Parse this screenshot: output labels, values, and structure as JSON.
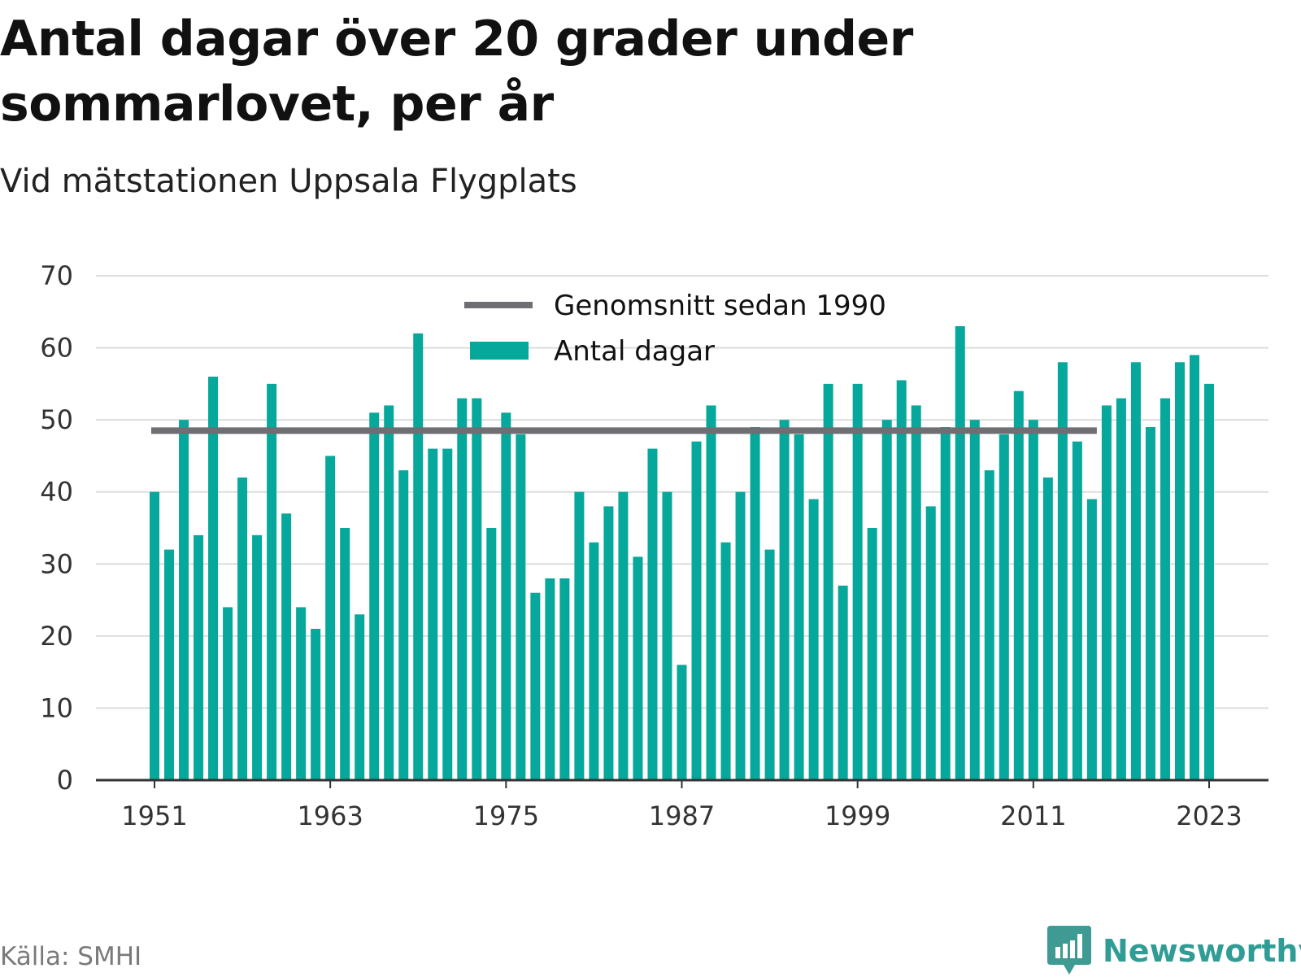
{
  "header": {
    "title": "Antal dagar över 20 grader under sommarlovet, per år",
    "subtitle": "Vid mätstationen Uppsala Flygplats"
  },
  "footer": {
    "source": "Källa: SMHI",
    "brand": "Newsworthy"
  },
  "colors": {
    "bar": "#05a89a",
    "average_line": "#6e6e73",
    "grid": "#dddddd",
    "axis": "#333333",
    "brand": "#2f9c95"
  },
  "chart_data": {
    "type": "bar",
    "x": [
      1951,
      1952,
      1953,
      1954,
      1955,
      1956,
      1957,
      1958,
      1959,
      1960,
      1961,
      1962,
      1963,
      1964,
      1965,
      1966,
      1967,
      1968,
      1969,
      1970,
      1971,
      1972,
      1973,
      1974,
      1975,
      1976,
      1977,
      1978,
      1979,
      1980,
      1981,
      1982,
      1983,
      1984,
      1985,
      1986,
      1987,
      1988,
      1989,
      1990,
      1991,
      1992,
      1993,
      1994,
      1995,
      1996,
      1997,
      1998,
      1999,
      2000,
      2001,
      2002,
      2003,
      2004,
      2005,
      2006,
      2007,
      2008,
      2009,
      2010,
      2011,
      2012,
      2013,
      2014,
      2015,
      2016,
      2017,
      2018,
      2019,
      2020,
      2021,
      2022,
      2023
    ],
    "series": [
      {
        "name": "Antal dagar",
        "values": [
          40,
          32,
          50,
          34,
          56,
          24,
          42,
          34,
          55,
          37,
          24,
          21,
          45,
          35,
          23,
          51,
          52,
          43,
          62,
          46,
          46,
          53,
          53,
          35,
          51,
          48,
          26,
          28,
          28,
          40,
          33,
          38,
          40,
          31,
          46,
          40,
          16,
          47,
          52,
          33,
          40,
          49,
          32,
          50,
          48,
          39,
          55,
          27,
          55,
          35,
          50,
          55.5,
          52,
          38,
          49,
          63,
          50,
          43,
          48,
          54,
          50,
          42,
          58,
          47,
          39,
          52,
          53,
          58,
          49,
          53,
          58,
          59,
          55
        ]
      },
      {
        "name": "Genomsnitt sedan 1990",
        "type": "line",
        "y": 48.5,
        "x_range": [
          1951,
          2015
        ]
      }
    ],
    "ylim": [
      0,
      70
    ],
    "yticks": [
      0,
      10,
      20,
      30,
      40,
      50,
      60,
      70
    ],
    "xticks": [
      1951,
      1963,
      1975,
      1987,
      1999,
      2011,
      2023
    ],
    "xlabel": "",
    "ylabel": "",
    "grid": true,
    "legend": {
      "position": "top-center",
      "entries": [
        "Genomsnitt sedan 1990",
        "Antal dagar"
      ]
    }
  }
}
